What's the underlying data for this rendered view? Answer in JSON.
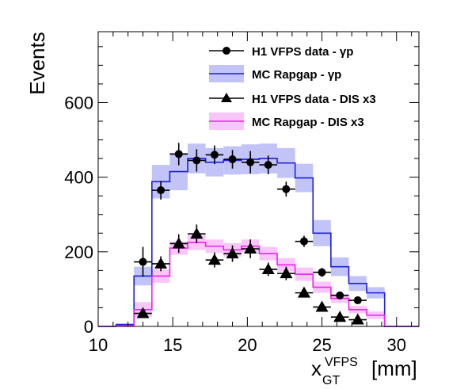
{
  "chart_data": {
    "type": "histogram",
    "ylabel": "Events",
    "xlabel_main": "x",
    "xlabel_sub": "GT",
    "xlabel_sup": "VFPS",
    "xlabel_unit": "[mm]",
    "xlim": [
      10,
      31.5
    ],
    "ylim": [
      0,
      790
    ],
    "xticks": [
      10,
      15,
      20,
      25,
      30
    ],
    "yticks": [
      0,
      200,
      400,
      600
    ],
    "legend": [
      {
        "label": "H1 VFPS data - γp",
        "marker": "circle"
      },
      {
        "label": "MC Rapgap - γp",
        "marker": "band-blue"
      },
      {
        "label": "H1 VFPS data - DIS x3",
        "marker": "triangle"
      },
      {
        "label": "MC Rapgap - DIS x3",
        "marker": "band-magenta"
      }
    ],
    "bin_edges": [
      10,
      11.2,
      12.4,
      13.6,
      14.8,
      16.0,
      17.2,
      18.4,
      19.6,
      20.8,
      22.0,
      23.2,
      24.4,
      25.6,
      26.8,
      28.0,
      29.2,
      30.4,
      31.5
    ],
    "mc_gp": {
      "values": [
        0,
        5,
        135,
        388,
        415,
        450,
        440,
        445,
        448,
        450,
        438,
        398,
        250,
        160,
        115,
        90,
        0,
        0
      ],
      "errors": [
        0,
        3,
        25,
        45,
        50,
        40,
        38,
        38,
        40,
        40,
        40,
        38,
        35,
        25,
        20,
        15,
        0,
        0
      ],
      "color": "#1f1fd6",
      "band_color": "#c2c4f8"
    },
    "mc_dis": {
      "values": [
        0,
        2,
        45,
        135,
        210,
        225,
        215,
        205,
        215,
        195,
        165,
        140,
        105,
        75,
        45,
        30,
        0,
        0
      ],
      "errors": [
        0,
        2,
        20,
        18,
        18,
        20,
        18,
        18,
        18,
        18,
        18,
        18,
        15,
        12,
        10,
        10,
        0,
        0
      ],
      "color": "#ee22ee",
      "band_color": "#f8c6f8"
    },
    "data_gp": {
      "x": [
        13.0,
        14.2,
        15.4,
        16.6,
        17.8,
        19.0,
        20.2,
        21.4,
        22.6,
        23.8,
        25.0,
        26.2,
        27.4
      ],
      "y": [
        173,
        365,
        462,
        445,
        460,
        448,
        440,
        433,
        368,
        228,
        145,
        83,
        70
      ],
      "yerr": [
        40,
        25,
        30,
        30,
        25,
        25,
        30,
        25,
        20,
        15,
        12,
        10,
        10
      ],
      "color": "#000000"
    },
    "data_dis": {
      "x": [
        13.0,
        14.2,
        15.4,
        16.6,
        17.8,
        19.0,
        20.2,
        21.4,
        22.6,
        23.8,
        25.0,
        26.2,
        27.4
      ],
      "y": [
        35,
        168,
        222,
        248,
        178,
        195,
        208,
        153,
        142,
        90,
        52,
        25,
        18
      ],
      "yerr": [
        12,
        20,
        25,
        25,
        20,
        22,
        25,
        18,
        18,
        12,
        10,
        8,
        8
      ],
      "color": "#000000"
    }
  }
}
